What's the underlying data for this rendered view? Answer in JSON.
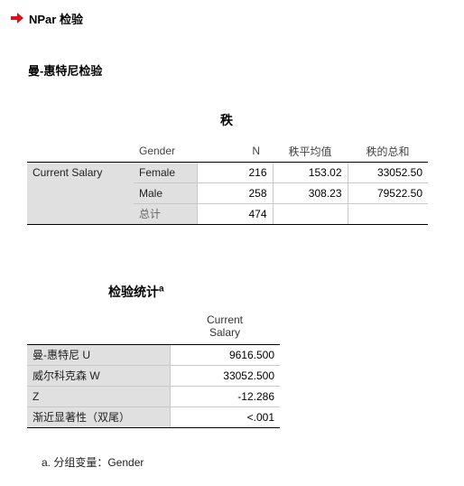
{
  "header": {
    "procedure_title": "NPar 检验",
    "arrow_color": "#e0101a",
    "subtitle": "曼-惠特尼检验"
  },
  "ranks_table": {
    "title": "秩",
    "columns": [
      "Gender",
      "N",
      "秩平均值",
      "秩的总和"
    ],
    "row_label": "Current Salary",
    "rows": [
      {
        "category": "Female",
        "n": "216",
        "mean_rank": "153.02",
        "sum_ranks": "33052.50"
      },
      {
        "category": "Male",
        "n": "258",
        "mean_rank": "308.23",
        "sum_ranks": "79522.50"
      },
      {
        "category": "总计",
        "n": "474",
        "mean_rank": "",
        "sum_ranks": ""
      }
    ]
  },
  "stats_table": {
    "title": "检验统计",
    "title_sup": "a",
    "column_header_line1": "Current",
    "column_header_line2": "Salary",
    "rows": [
      {
        "label": "曼-惠特尼 U",
        "value": "9616.500"
      },
      {
        "label": "威尔科克森 W",
        "value": "33052.500"
      },
      {
        "label": "Z",
        "value": "-12.286"
      },
      {
        "label": "渐近显著性（双尾）",
        "value": "<.001"
      }
    ],
    "footnote": "a. 分组变量：Gender"
  }
}
